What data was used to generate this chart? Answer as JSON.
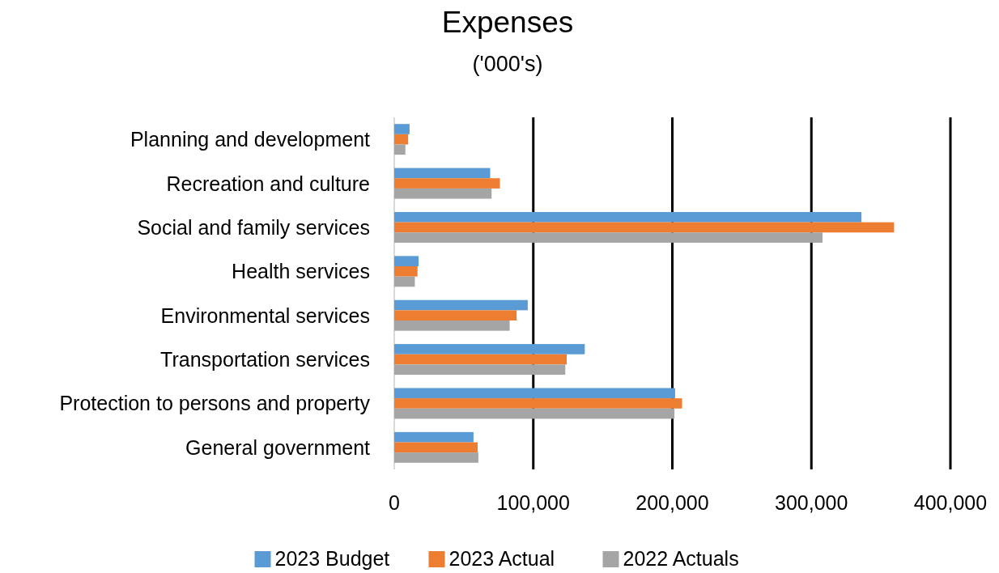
{
  "chart_data": {
    "type": "bar",
    "orientation": "horizontal",
    "title": "Expenses",
    "subtitle": "('000's)",
    "categories": [
      "Planning and development",
      "Recreation and culture",
      "Social and family services",
      "Health services",
      "Environmental services",
      "Transportation services",
      "Protection to persons and property",
      "General government"
    ],
    "series": [
      {
        "name": "2023 Budget",
        "color": "#5b9bd5",
        "values": [
          11000,
          69000,
          336000,
          17500,
          96000,
          137000,
          202000,
          57000
        ]
      },
      {
        "name": "2023 Actual",
        "color": "#ed7d31",
        "values": [
          10000,
          76000,
          359500,
          16700,
          88000,
          124000,
          207000,
          60000
        ]
      },
      {
        "name": "2022 Actuals",
        "color": "#a5a5a5",
        "values": [
          8000,
          70000,
          308000,
          14800,
          83000,
          123000,
          201500,
          60500
        ]
      }
    ],
    "xlim": [
      0,
      400000
    ],
    "xticks": [
      {
        "value": 0,
        "label": "0"
      },
      {
        "value": 100000,
        "label": "100,000"
      },
      {
        "value": 200000,
        "label": "200,000"
      },
      {
        "value": 300000,
        "label": "300,000"
      },
      {
        "value": 400000,
        "label": "400,000"
      }
    ],
    "grid": "x",
    "legend": "bottom"
  }
}
